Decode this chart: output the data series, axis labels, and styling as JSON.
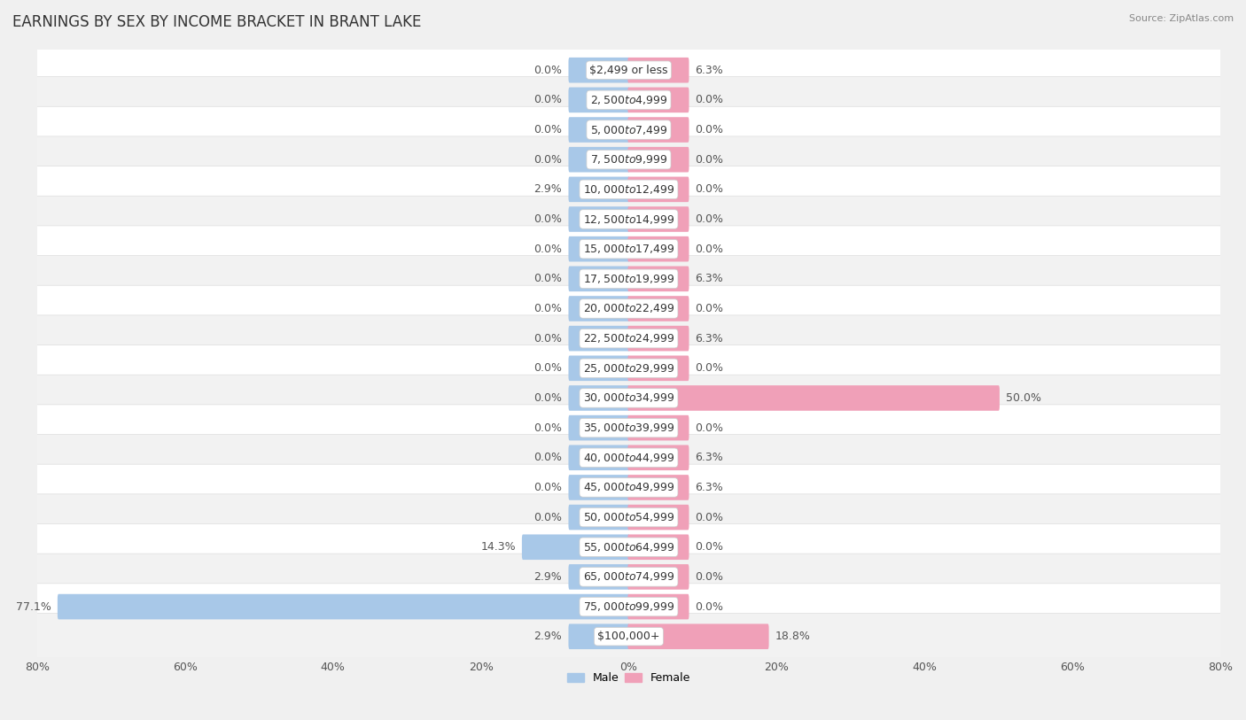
{
  "title": "EARNINGS BY SEX BY INCOME BRACKET IN BRANT LAKE",
  "source": "Source: ZipAtlas.com",
  "categories": [
    "$2,499 or less",
    "$2,500 to $4,999",
    "$5,000 to $7,499",
    "$7,500 to $9,999",
    "$10,000 to $12,499",
    "$12,500 to $14,999",
    "$15,000 to $17,499",
    "$17,500 to $19,999",
    "$20,000 to $22,499",
    "$22,500 to $24,999",
    "$25,000 to $29,999",
    "$30,000 to $34,999",
    "$35,000 to $39,999",
    "$40,000 to $44,999",
    "$45,000 to $49,999",
    "$50,000 to $54,999",
    "$55,000 to $64,999",
    "$65,000 to $74,999",
    "$75,000 to $99,999",
    "$100,000+"
  ],
  "male": [
    0.0,
    0.0,
    0.0,
    0.0,
    2.9,
    0.0,
    0.0,
    0.0,
    0.0,
    0.0,
    0.0,
    0.0,
    0.0,
    0.0,
    0.0,
    0.0,
    14.3,
    2.9,
    77.1,
    2.9
  ],
  "female": [
    6.3,
    0.0,
    0.0,
    0.0,
    0.0,
    0.0,
    0.0,
    6.3,
    0.0,
    6.3,
    0.0,
    50.0,
    0.0,
    6.3,
    6.3,
    0.0,
    0.0,
    0.0,
    0.0,
    18.8
  ],
  "male_color": "#a8c8e8",
  "female_color": "#f0a0b8",
  "male_label": "Male",
  "female_label": "Female",
  "xlim": 80.0,
  "bg_color": "#f0f0f0",
  "row_color_odd": "#f8f8f8",
  "row_color_even": "#ebebeb",
  "label_color": "#555555",
  "title_fontsize": 12,
  "tick_fontsize": 9,
  "bar_label_fontsize": 9,
  "category_fontsize": 9,
  "min_bar_width": 8.0
}
